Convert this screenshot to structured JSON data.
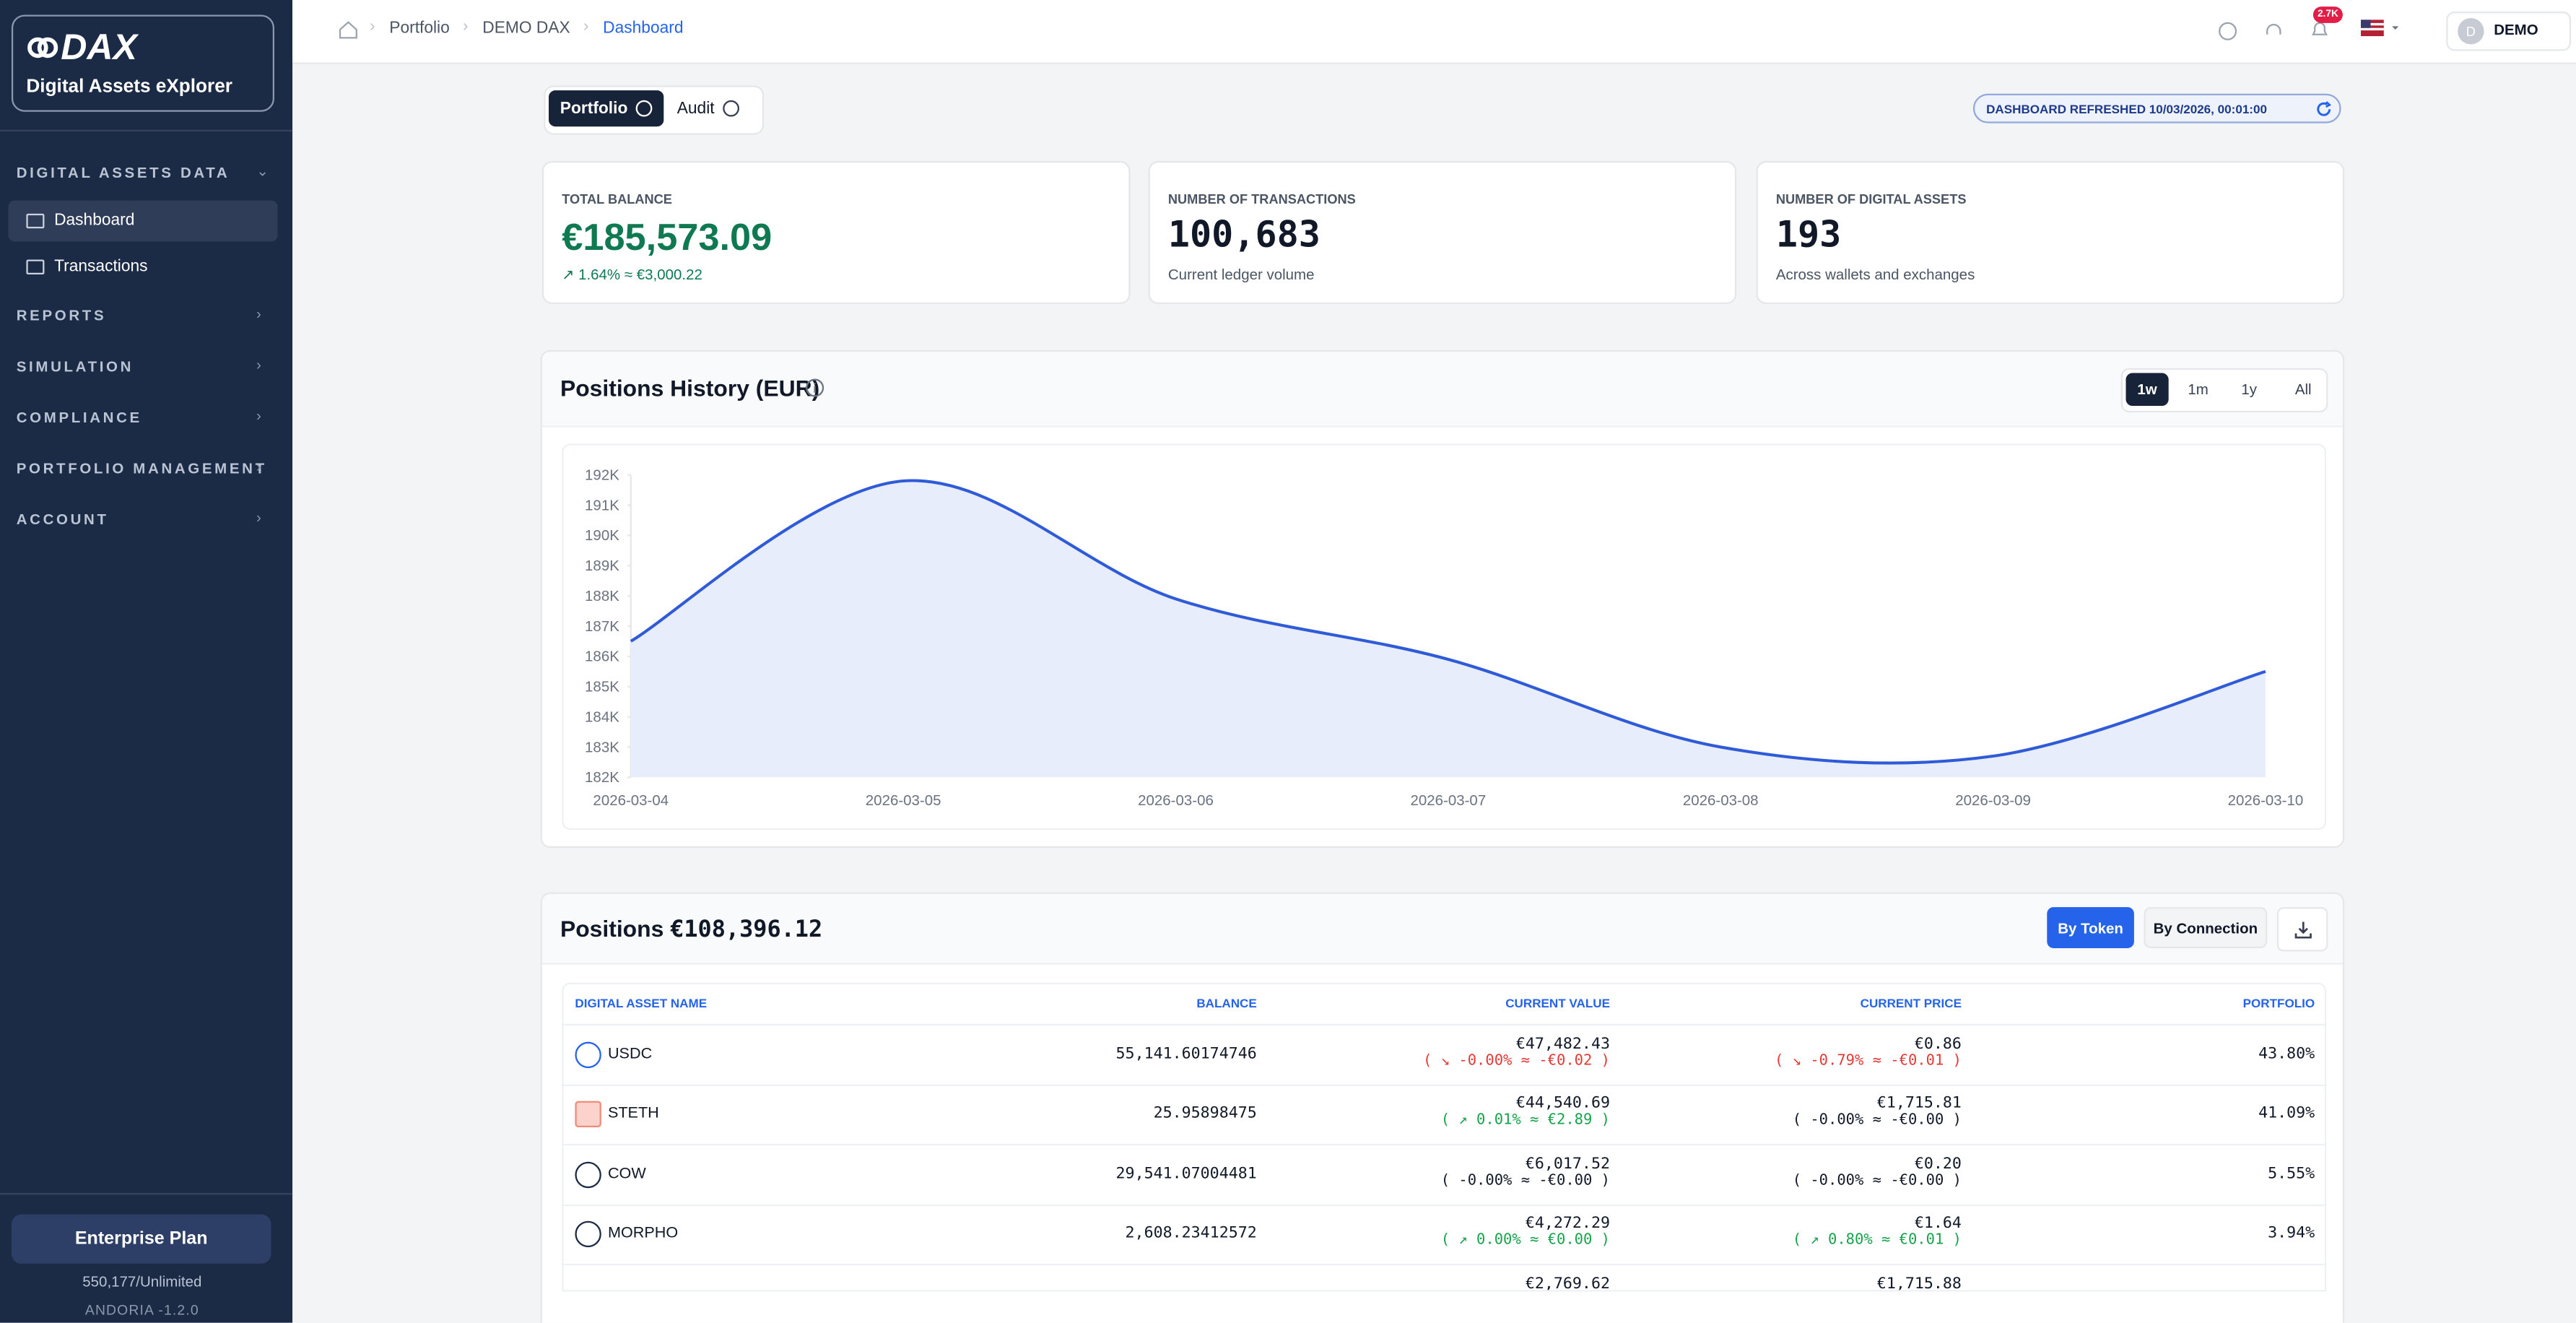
{
  "sidebar": {
    "brand": "DAX",
    "product": "Digital Assets eXplorer",
    "sections": [
      {
        "label": "DIGITAL ASSETS DATA",
        "items": [
          "Dashboard",
          "Transactions"
        ],
        "active": 0
      },
      {
        "label": "REPORTS"
      },
      {
        "label": "SIMULATION"
      },
      {
        "label": "COMPLIANCE"
      },
      {
        "label": "PORTFOLIO MANAGEMENT"
      },
      {
        "label": "ACCOUNT"
      }
    ],
    "plan": "Enterprise Plan",
    "usage": "550,177/Unlimited",
    "version": "ANDORIA -1.2.0"
  },
  "topbar": {
    "breadcrumb": [
      "Portfolio",
      "DEMO DAX",
      "Dashboard"
    ],
    "notifications": "2.7K",
    "user_initial": "D",
    "user": "DEMO"
  },
  "tabs": {
    "items": [
      "Portfolio",
      "Audit"
    ],
    "active": 0
  },
  "refreshed": "DASHBOARD REFRESHED 10/03/2026, 00:01:00",
  "stats": [
    {
      "label": "TOTAL BALANCE",
      "value": "€185,573.09",
      "note": "↗ 1.64% ≈ €3,000.22",
      "color": "#0f7a52",
      "note_color": "#0f7a52"
    },
    {
      "label": "NUMBER OF TRANSACTIONS",
      "value": "100,683",
      "note": "Current ledger volume",
      "color": "#111827",
      "note_color": "#4b5563"
    },
    {
      "label": "NUMBER OF DIGITAL ASSETS",
      "value": "193",
      "note": "Across wallets and exchanges",
      "color": "#111827",
      "note_color": "#4b5563"
    }
  ],
  "chart_data": {
    "type": "line",
    "title": "Positions History (EUR)",
    "ranges": [
      "1w",
      "1m",
      "1y",
      "All"
    ],
    "active_range": 0,
    "x": [
      "2026-03-04",
      "2026-03-05",
      "2026-03-06",
      "2026-03-07",
      "2026-03-08",
      "2026-03-09",
      "2026-03-10"
    ],
    "series": [
      {
        "name": "Positions",
        "color": "#2f5bd8",
        "fill": "#e8edfb",
        "values": [
          186500,
          191800,
          187900,
          185900,
          183000,
          182700,
          185500
        ]
      }
    ],
    "ylim": [
      182000,
      192000
    ],
    "yticks": [
      {
        "value": 182000,
        "label": "182K"
      },
      {
        "value": 183000,
        "label": "183K"
      },
      {
        "value": 184000,
        "label": "184K"
      },
      {
        "value": 185000,
        "label": "185K"
      },
      {
        "value": 186000,
        "label": "186K"
      },
      {
        "value": 187000,
        "label": "187K"
      },
      {
        "value": 188000,
        "label": "188K"
      },
      {
        "value": 189000,
        "label": "189K"
      },
      {
        "value": 190000,
        "label": "190K"
      },
      {
        "value": 191000,
        "label": "191K"
      },
      {
        "value": 192000,
        "label": "192K"
      }
    ],
    "grid": false
  },
  "positions": {
    "title": "Positions",
    "total": "€108,396.12",
    "buttons": [
      "By Token",
      "By Connection"
    ],
    "active_button": 0,
    "columns": [
      "DIGITAL ASSET NAME",
      "BALANCE",
      "CURRENT VALUE",
      "CURRENT PRICE",
      "PORTFOLIO"
    ],
    "rows": [
      {
        "name": "USDC",
        "balance": "55,141.60174746",
        "value": "€47,482.43",
        "value_change": "( ↘ -0.00% ≈ -€0.02 )",
        "value_change_color": "#e53935",
        "price": "€0.86",
        "price_change": "( ↘ -0.79% ≈ -€0.01 )",
        "price_change_color": "#e53935",
        "portfolio": "43.80%"
      },
      {
        "name": "STETH",
        "balance": "25.95898475",
        "value": "€44,540.69",
        "value_change": "( ↗ 0.01% ≈ €2.89 )",
        "value_change_color": "#16a34a",
        "price": "€1,715.81",
        "price_change": "( -0.00% ≈ -€0.00 )",
        "price_change_color": "#111827",
        "portfolio": "41.09%"
      },
      {
        "name": "COW",
        "balance": "29,541.07004481",
        "value": "€6,017.52",
        "value_change": "( -0.00% ≈ -€0.00 )",
        "value_change_color": "#111827",
        "price": "€0.20",
        "price_change": "( -0.00% ≈ -€0.00 )",
        "price_change_color": "#111827",
        "portfolio": "5.55%"
      },
      {
        "name": "MORPHO",
        "balance": "2,608.23412572",
        "value": "€4,272.29",
        "value_change": "( ↗ 0.00% ≈ €0.00 )",
        "value_change_color": "#16a34a",
        "price": "€1.64",
        "price_change": "( ↗ 0.80% ≈ €0.01 )",
        "price_change_color": "#16a34a",
        "portfolio": "3.94%"
      },
      {
        "value": "€2,769.62",
        "price": "€1,715.88"
      }
    ]
  }
}
